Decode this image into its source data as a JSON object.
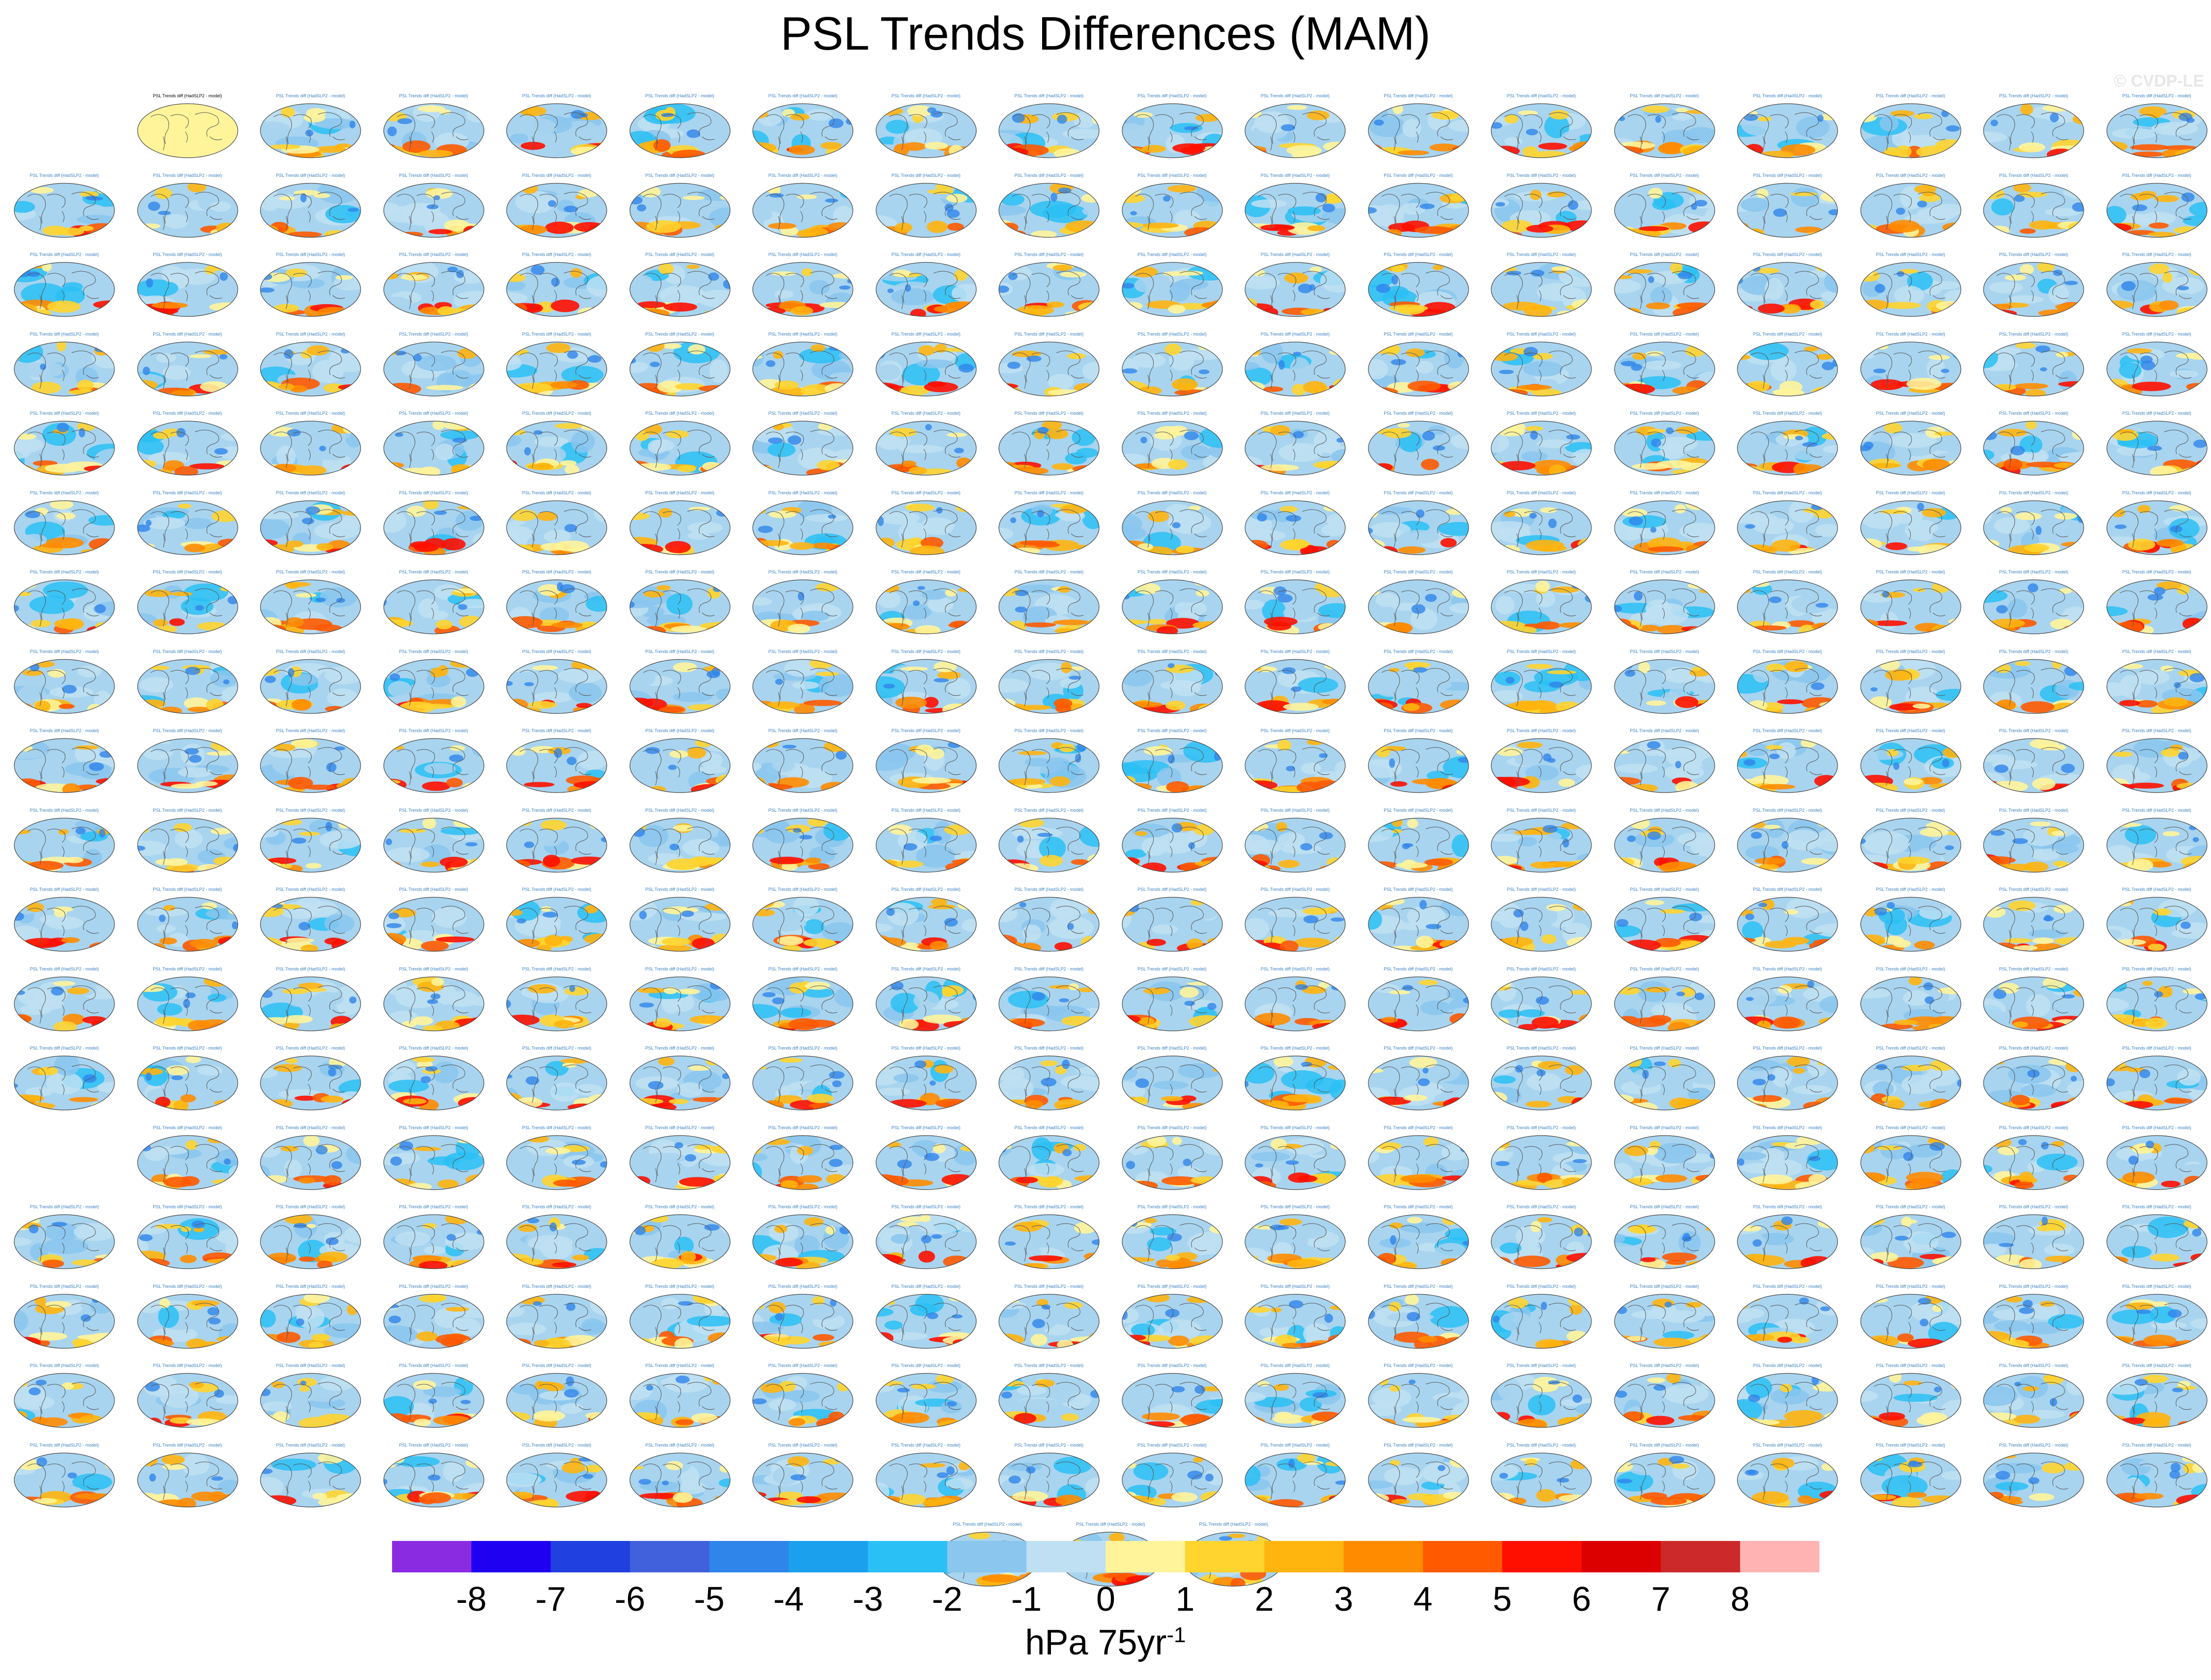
{
  "title": "PSL Trends Differences (MAM)",
  "watermark": "© CVDP-LE",
  "panel_title_text": "PSL Trends diff (HadSLP2 - model)",
  "chart_data": {
    "type": "heatmap",
    "title": "PSL Trends Differences (MAM)",
    "description_panels": "Grid of small global map panels, each a trend-difference map",
    "rows": [
      {
        "row": 1,
        "panels": 17,
        "first_panel_blank": true,
        "highlight_panel": 1
      },
      {
        "row": 2,
        "panels": 18
      },
      {
        "row": 3,
        "panels": 18
      },
      {
        "row": 4,
        "panels": 18
      },
      {
        "row": 5,
        "panels": 18
      },
      {
        "row": 6,
        "panels": 18
      },
      {
        "row": 7,
        "panels": 18
      },
      {
        "row": 8,
        "panels": 18
      },
      {
        "row": 9,
        "panels": 18
      },
      {
        "row": 10,
        "panels": 18
      },
      {
        "row": 11,
        "panels": 18
      },
      {
        "row": 12,
        "panels": 18
      },
      {
        "row": 13,
        "panels": 18
      },
      {
        "row": 14,
        "panels": 17,
        "first_panel_blank": true
      },
      {
        "row": 15,
        "panels": 18
      },
      {
        "row": 16,
        "panels": 18
      },
      {
        "row": 17,
        "panels": 18
      },
      {
        "row": 18,
        "panels": 18
      },
      {
        "row": 19,
        "panels": 3,
        "centered": true
      }
    ],
    "colorbar": {
      "levels": [
        -8,
        -7,
        -6,
        -5,
        -4,
        -3,
        -2,
        -1,
        0,
        1,
        2,
        3,
        4,
        5,
        6,
        7,
        8
      ],
      "labels": [
        "-8",
        "-7",
        "-6",
        "-5",
        "-4",
        "-3",
        "-2",
        "-1",
        "0",
        "1",
        "2",
        "3",
        "4",
        "5",
        "6",
        "7",
        "8"
      ],
      "colors": [
        "#8a2be2",
        "#1f00f0",
        "#2040e0",
        "#4060dc",
        "#2f85ea",
        "#1aa0ec",
        "#2ac0f5",
        "#8ac6ee",
        "#bfe0f2",
        "#fff49a",
        "#ffd42e",
        "#ffb40e",
        "#ff8c00",
        "#ff5a00",
        "#ff0f00",
        "#dd0000",
        "#cc2a2a",
        "#ffb3b3"
      ],
      "units_main": "hPa 75yr",
      "units_sup": "-1"
    }
  }
}
